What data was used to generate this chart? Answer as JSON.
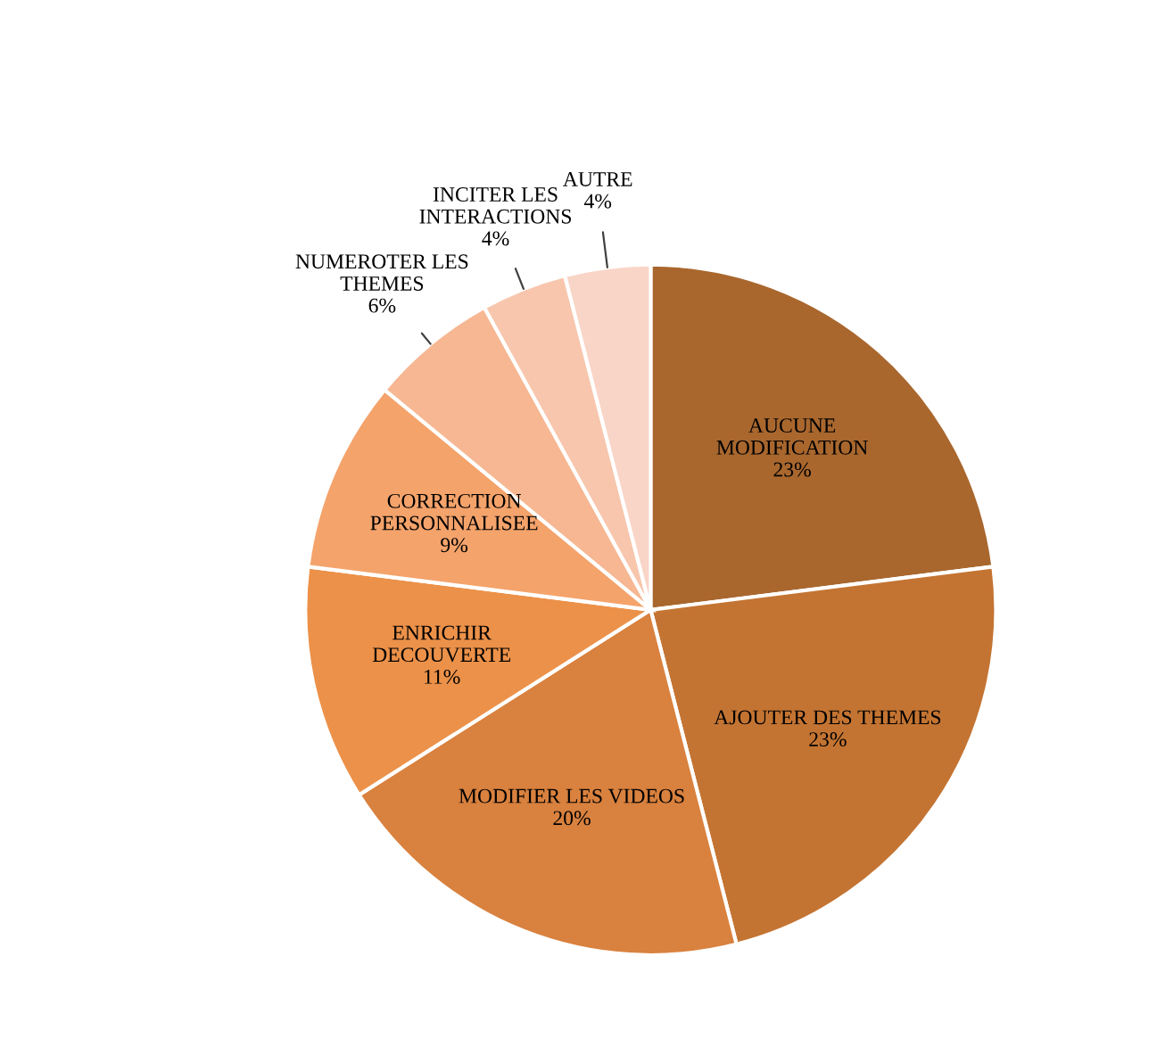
{
  "chart_data": {
    "type": "pie",
    "categories": [
      "AUCUNE\nMODIFICATION",
      "AJOUTER DES THEMES",
      "MODIFIER LES VIDEOS",
      "ENRICHIR\nDECOUVERTE",
      "CORRECTION\nPERSONNALISEE",
      "NUMEROTER LES\nTHEMES",
      "INCITER LES\nINTERACTIONS",
      "AUTRE"
    ],
    "values": [
      23,
      23,
      20,
      11,
      9,
      6,
      4,
      4
    ],
    "value_labels": [
      "23%",
      "23%",
      "20%",
      "11%",
      "9%",
      "6%",
      "4%",
      "4%"
    ],
    "colors": [
      "#a9672e",
      "#c47432",
      "#d9813e",
      "#ec9149",
      "#f4a36b",
      "#f6b792",
      "#f7c6ad",
      "#f9d5c7"
    ]
  }
}
